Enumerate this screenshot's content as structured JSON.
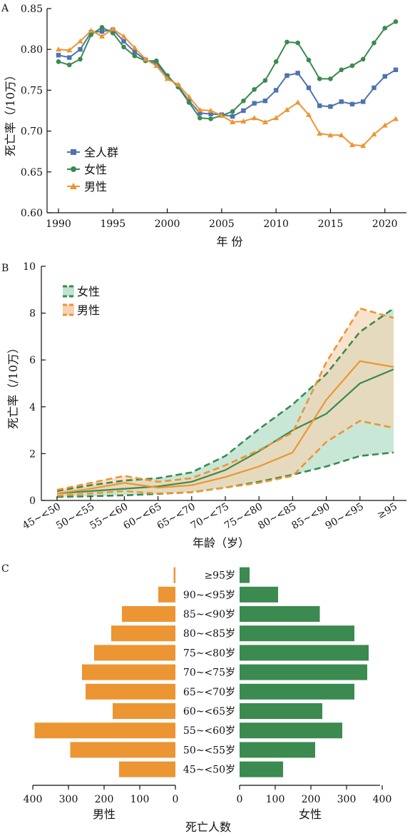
{
  "colors": {
    "all": "#4f72b0",
    "female": "#3b8a4f",
    "male": "#ec9533",
    "female_band": "#bfe3d0",
    "male_band": "#f6d3b1"
  },
  "chart_data": [
    {
      "panel": "A",
      "type": "line",
      "xlabel": "年 份",
      "ylabel": "死亡率（/10万）",
      "xlim": [
        1989.5,
        2021.5
      ],
      "ylim": [
        0.6,
        0.85
      ],
      "xticks": [
        1990,
        1995,
        2000,
        2005,
        2010,
        2015,
        2020
      ],
      "yticks": [
        "0.60",
        "0.65",
        "0.70",
        "0.75",
        "0.80",
        "0.85"
      ],
      "legend_position": "bottom-left",
      "x": [
        1990,
        1991,
        1992,
        1993,
        1994,
        1995,
        1996,
        1997,
        1998,
        1999,
        2000,
        2001,
        2002,
        2003,
        2004,
        2005,
        2006,
        2007,
        2008,
        2009,
        2010,
        2011,
        2012,
        2013,
        2014,
        2015,
        2016,
        2017,
        2018,
        2019,
        2020,
        2021
      ],
      "series": [
        {
          "name": "全人群",
          "key": "all",
          "marker": "square",
          "values": [
            0.793,
            0.79,
            0.8,
            0.821,
            0.822,
            0.824,
            0.81,
            0.797,
            0.787,
            0.783,
            0.767,
            0.755,
            0.737,
            0.722,
            0.721,
            0.72,
            0.718,
            0.725,
            0.734,
            0.737,
            0.75,
            0.768,
            0.771,
            0.753,
            0.731,
            0.73,
            0.736,
            0.733,
            0.736,
            0.753,
            0.767,
            0.775
          ]
        },
        {
          "name": "女性",
          "key": "female",
          "marker": "circle",
          "values": [
            0.785,
            0.781,
            0.788,
            0.818,
            0.827,
            0.82,
            0.803,
            0.792,
            0.786,
            0.786,
            0.768,
            0.754,
            0.735,
            0.716,
            0.715,
            0.719,
            0.724,
            0.737,
            0.751,
            0.762,
            0.785,
            0.809,
            0.808,
            0.787,
            0.764,
            0.764,
            0.775,
            0.78,
            0.788,
            0.808,
            0.826,
            0.834
          ]
        },
        {
          "name": "男性",
          "key": "male",
          "marker": "triangle",
          "values": [
            0.8,
            0.799,
            0.81,
            0.823,
            0.816,
            0.825,
            0.816,
            0.802,
            0.788,
            0.78,
            0.764,
            0.757,
            0.742,
            0.726,
            0.725,
            0.719,
            0.711,
            0.712,
            0.716,
            0.711,
            0.716,
            0.726,
            0.735,
            0.72,
            0.697,
            0.695,
            0.695,
            0.683,
            0.682,
            0.696,
            0.707,
            0.715
          ]
        }
      ]
    },
    {
      "panel": "B",
      "type": "area",
      "xlabel": "年龄（岁）",
      "ylabel": "死亡率（/10万）",
      "ylim": [
        0,
        10
      ],
      "yticks": [
        0,
        2,
        4,
        6,
        8,
        10
      ],
      "legend_position": "top-left",
      "categories": [
        "45~<50",
        "50~<55",
        "55~<60",
        "60~<65",
        "65~<70",
        "70~<75",
        "75~<80",
        "80~<85",
        "85~<90",
        "90~<95",
        "≥95"
      ],
      "series": [
        {
          "name": "女性",
          "key": "female",
          "values": [
            0.3,
            0.4,
            0.5,
            0.6,
            0.8,
            1.3,
            2.1,
            3.0,
            3.7,
            5.0,
            5.6
          ],
          "lower": [
            0.15,
            0.18,
            0.22,
            0.28,
            0.35,
            0.55,
            0.8,
            1.1,
            1.45,
            1.9,
            2.05
          ],
          "upper": [
            0.4,
            0.65,
            0.85,
            0.95,
            1.2,
            1.9,
            3.05,
            4.1,
            5.4,
            7.2,
            8.2
          ]
        },
        {
          "name": "男性",
          "key": "male",
          "values": [
            0.3,
            0.5,
            0.75,
            0.55,
            0.65,
            1.0,
            1.45,
            2.05,
            4.3,
            5.95,
            5.7
          ],
          "lower": [
            0.2,
            0.3,
            0.4,
            0.3,
            0.35,
            0.55,
            0.75,
            1.05,
            2.5,
            3.4,
            3.1
          ],
          "upper": [
            0.45,
            0.75,
            1.05,
            0.8,
            0.95,
            1.5,
            2.15,
            2.9,
            5.9,
            8.2,
            7.8
          ]
        }
      ]
    },
    {
      "panel": "C",
      "type": "bar",
      "orientation": "horizontal-butterfly",
      "xlabel": "死亡人数",
      "left_label": "男性",
      "right_label": "女性",
      "xlim": [
        0,
        400
      ],
      "left_ticks": [
        400,
        300,
        200,
        100,
        0
      ],
      "right_ticks": [
        0,
        100,
        200,
        300,
        400
      ],
      "categories": [
        "≥95岁",
        "90~<95岁",
        "85~<90岁",
        "80~<85岁",
        "75~<80岁",
        "70~<75岁",
        "65~<70岁",
        "60~<65岁",
        "55~<60岁",
        "50~<55岁",
        "45~<50岁"
      ],
      "male": [
        5,
        48,
        150,
        180,
        228,
        262,
        252,
        176,
        395,
        295,
        158
      ],
      "female": [
        28,
        108,
        225,
        322,
        362,
        358,
        322,
        232,
        288,
        212,
        122
      ]
    }
  ]
}
